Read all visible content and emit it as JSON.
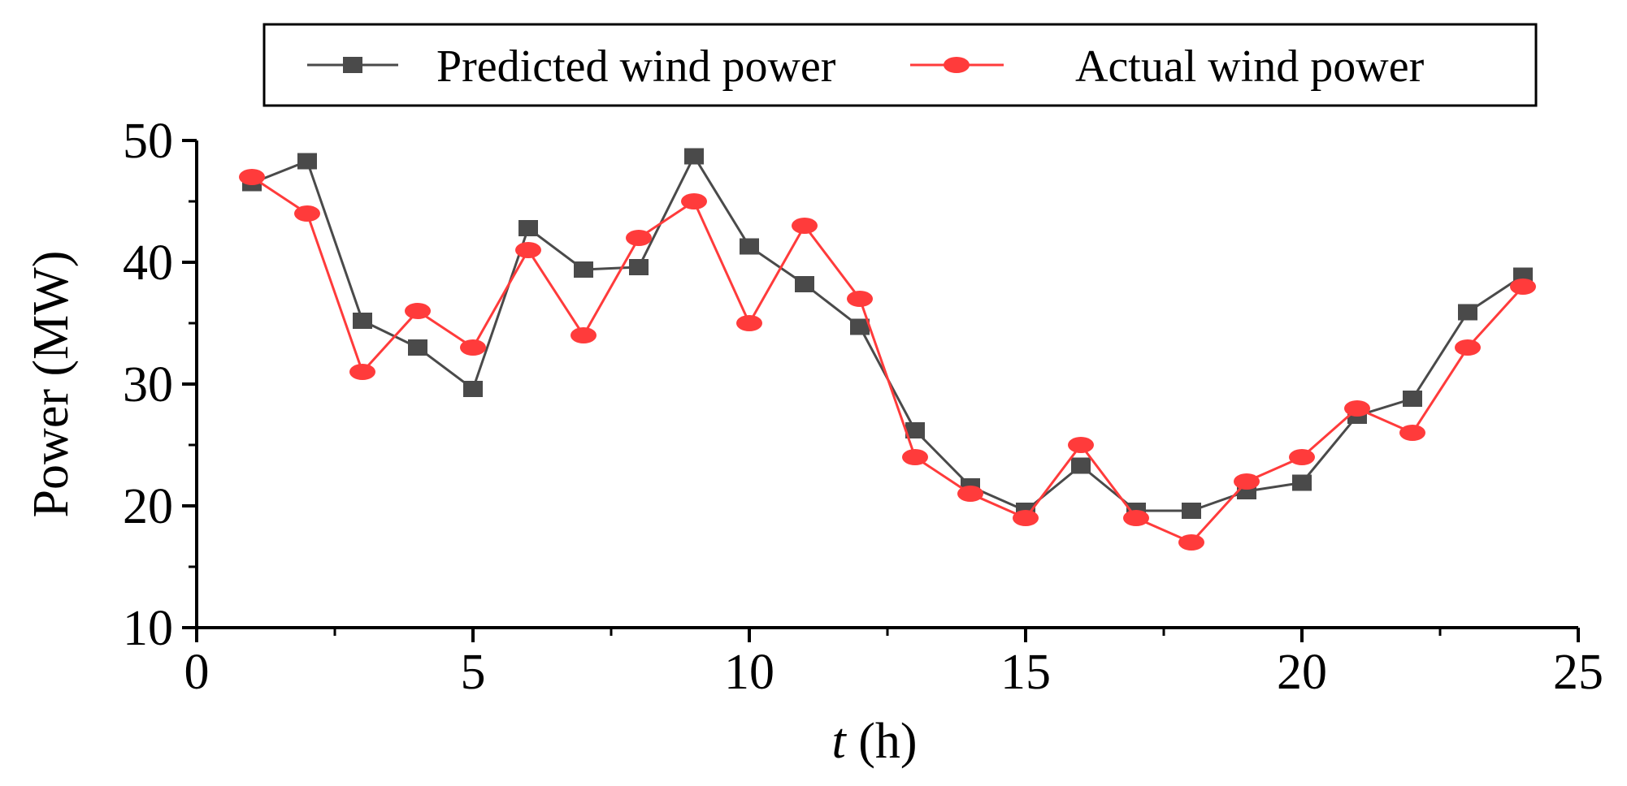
{
  "chart_data": {
    "type": "line",
    "title": "",
    "xlabel_italic": "t",
    "xlabel_rest": " (h)",
    "ylabel": "Power (MW)",
    "xlim": [
      0,
      25
    ],
    "ylim": [
      10,
      50
    ],
    "xticks": [
      0,
      5,
      10,
      15,
      20,
      25
    ],
    "yticks": [
      10,
      20,
      30,
      40,
      50
    ],
    "x": [
      1,
      2,
      3,
      4,
      5,
      6,
      7,
      8,
      9,
      10,
      11,
      12,
      13,
      14,
      15,
      16,
      17,
      18,
      19,
      20,
      21,
      22,
      23,
      24
    ],
    "series": [
      {
        "name": "Predicted wind power",
        "color": "#4a4a4a",
        "marker": "square",
        "values": [
          46.5,
          48.3,
          35.2,
          33.0,
          29.6,
          42.8,
          39.4,
          39.6,
          48.7,
          41.3,
          38.2,
          34.7,
          26.2,
          21.6,
          19.6,
          23.3,
          19.6,
          19.6,
          21.2,
          21.9,
          27.4,
          28.8,
          35.9,
          38.9
        ]
      },
      {
        "name": "Actual wind power",
        "color": "#ff3b3b",
        "marker": "circle",
        "values": [
          47.0,
          44.0,
          31.0,
          36.0,
          33.0,
          41.0,
          34.0,
          42.0,
          45.0,
          35.0,
          43.0,
          37.0,
          24.0,
          21.0,
          19.0,
          25.0,
          19.0,
          17.0,
          22.0,
          24.0,
          28.0,
          26.0,
          33.0,
          38.0
        ]
      }
    ],
    "legend_position": "top"
  }
}
